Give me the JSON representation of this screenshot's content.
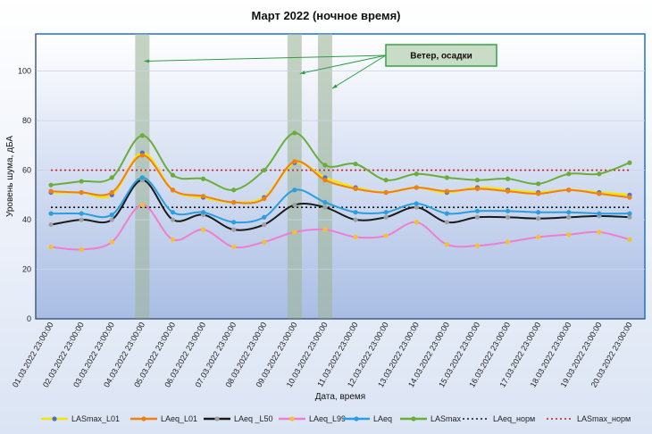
{
  "chart_data": {
    "type": "line",
    "title": "Март 2022 (ночное время)",
    "xlabel": "Дата, время",
    "ylabel": "Уровень шума, дБА",
    "ylim": [
      0,
      115
    ],
    "yticks": [
      0,
      20,
      40,
      60,
      80,
      100
    ],
    "grid": true,
    "legend_position": "bottom",
    "categories": [
      "01.03.2022 23:00:00",
      "02.03.2022 23:00:00",
      "03.03.2022 23:00:00",
      "04.03.2022 23:00:00",
      "05.03.2022 23:00:00",
      "06.03.2022 23:00:00",
      "07.03.2022 23:00:00",
      "08.03.2022 23:00:00",
      "09.03.2022 23:00:00",
      "10.03.2022 23:00:00",
      "11.03.2022 23:00:00",
      "12.03.2022 23:00:00",
      "13.03.2022 23:00:00",
      "14.03.2022 23:00:00",
      "15.03.2022 23:00:00",
      "16.03.2022 23:00:00",
      "17.03.2022 23:00:00",
      "18.03.2022 23:00:00",
      "19.03.2022 23:00:00",
      "20.03.2022 23:00:00"
    ],
    "series": [
      {
        "name": "LASmax_L01",
        "color": "#f2e600",
        "marker_color": "#4a6fd0",
        "width": 2.5,
        "values": [
          51,
          51,
          50,
          67,
          52,
          49,
          47,
          49,
          63,
          57,
          53,
          51,
          53,
          51,
          53,
          52,
          51,
          52,
          51,
          50
        ]
      },
      {
        "name": "LAeq_L01",
        "color": "#f07f16",
        "marker_color": "#f07f16",
        "width": 2,
        "values": [
          51.5,
          51,
          51,
          66,
          52,
          49.5,
          47,
          48.5,
          63.5,
          56,
          52.5,
          51,
          53,
          51.5,
          52.5,
          51.5,
          50.5,
          52,
          50.5,
          49
        ]
      },
      {
        "name": "LAeq _L50",
        "color": "#1a1a1a",
        "marker_color": "#a0a0a0",
        "width": 2,
        "values": [
          38,
          40,
          40,
          56,
          40,
          42,
          36,
          38,
          46,
          45,
          40,
          41,
          45,
          39,
          41,
          41,
          40.5,
          41,
          41.5,
          41
        ]
      },
      {
        "name": "LAeq_L99",
        "color": "#ee7fd0",
        "marker_color": "#f6c12e",
        "width": 2,
        "values": [
          29,
          28,
          31,
          46,
          32,
          36,
          29,
          31,
          35,
          36,
          33,
          33.5,
          39,
          30,
          29.5,
          31,
          33,
          34,
          35,
          32
        ]
      },
      {
        "name": "LAeq",
        "color": "#2a9ee0",
        "marker_color": "#2a9ee0",
        "width": 2,
        "values": [
          42.5,
          42.5,
          42,
          57,
          43,
          43,
          39,
          41,
          52,
          47,
          43,
          43,
          46.5,
          42.5,
          43.5,
          43.5,
          43,
          43,
          42.5,
          42.5
        ]
      },
      {
        "name": "LASmax",
        "color": "#6aae3a",
        "marker_color": "#6aae3a",
        "width": 2,
        "values": [
          54,
          55.5,
          57,
          74,
          58,
          56.5,
          52,
          60,
          75,
          62,
          62.5,
          56,
          58.5,
          57,
          56,
          56.5,
          54.5,
          58.5,
          58.5,
          63
        ]
      }
    ],
    "reference_lines": [
      {
        "name": "LAeq_норм",
        "value": 45,
        "color": "#111111"
      },
      {
        "name": "LASmax_норм",
        "value": 60,
        "color": "#cc1b1b"
      }
    ],
    "highlighted_categories": [
      3,
      8,
      9
    ],
    "annotation": {
      "text": "Ветер, осадки",
      "points_to": [
        3,
        8,
        9
      ]
    },
    "legend": [
      "LASmax_L01",
      "LAeq_L01",
      "LAeq _L50",
      "LAeq_L99",
      "LAeq",
      "LASmax",
      "LAeq_норм",
      "LASmax_норм"
    ]
  },
  "colors": {
    "plot_top": "#ffffff",
    "plot_bottom": "#a9bde4",
    "border": "#1f6fd6",
    "highlight": "#9fb69a",
    "callout_fill": "#c9dcc5",
    "callout_border": "#33a34a"
  }
}
